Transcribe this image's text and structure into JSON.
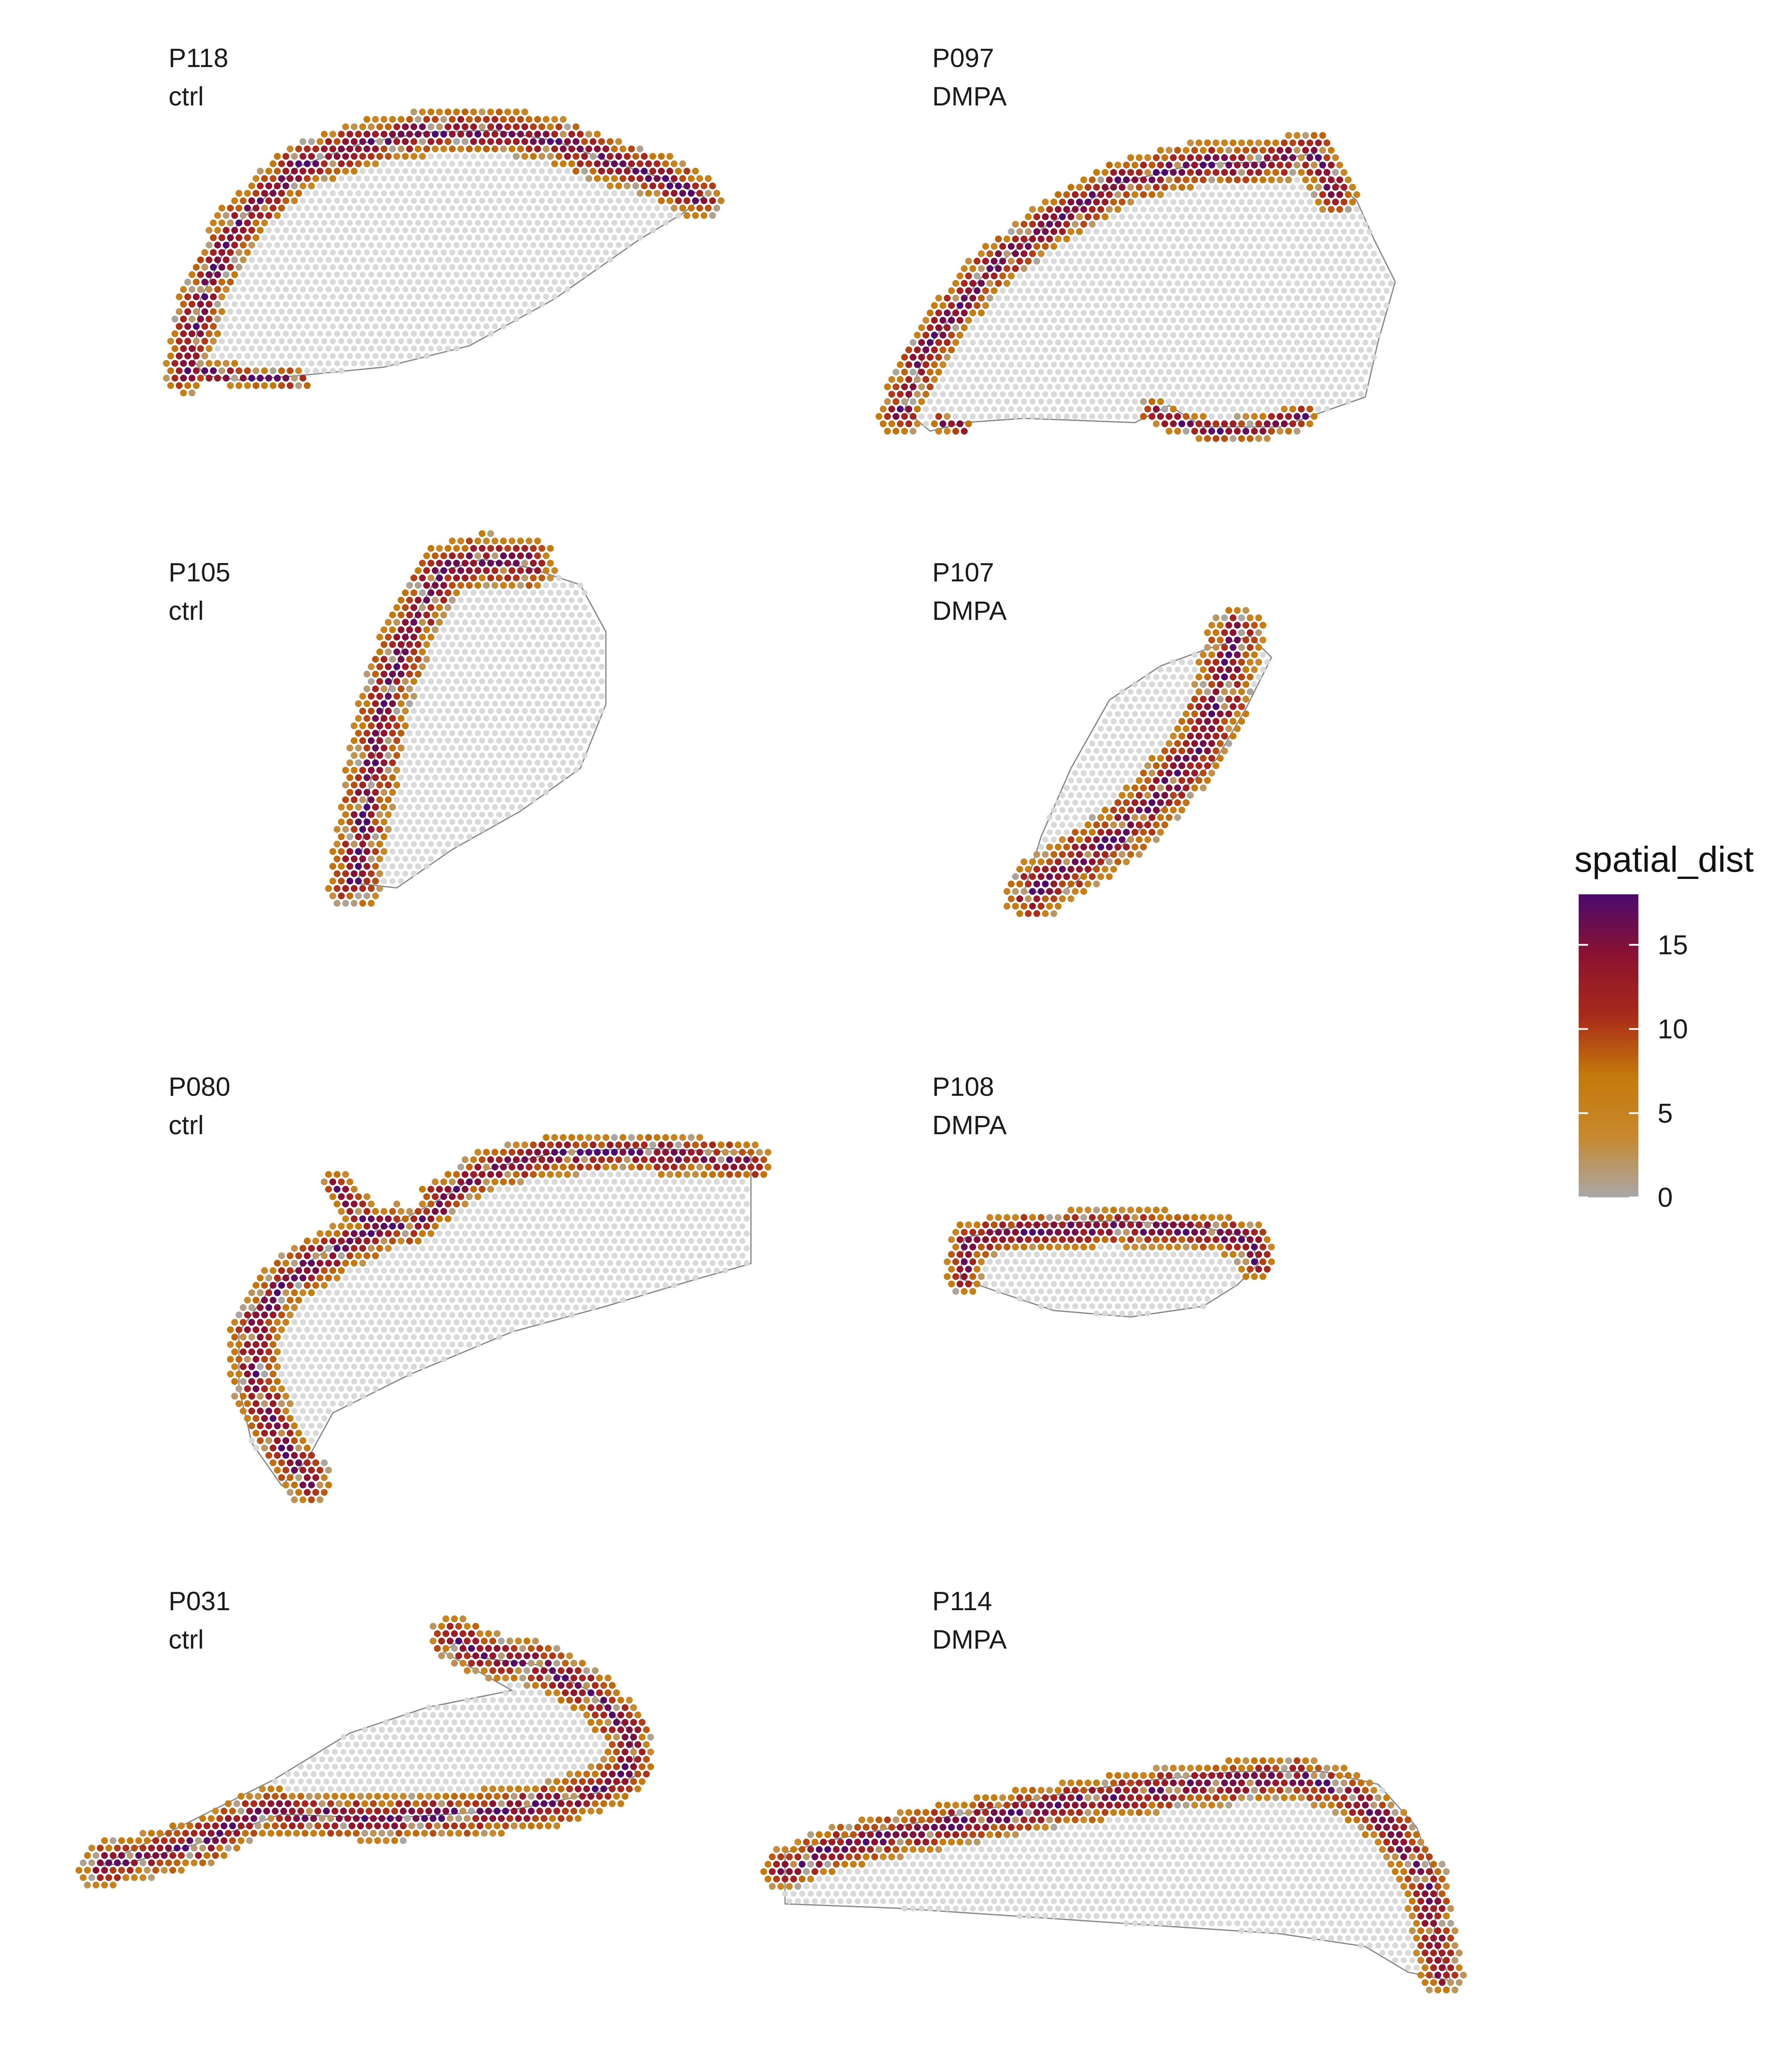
{
  "chart_data": {
    "type": "scatter",
    "description_kind": "spatial transcriptomics spot maps, faceted by sample",
    "panels": [
      {
        "sample": "P118",
        "group": "ctrl"
      },
      {
        "sample": "P097",
        "group": "DMPA"
      },
      {
        "sample": "P105",
        "group": "ctrl"
      },
      {
        "sample": "P107",
        "group": "DMPA"
      },
      {
        "sample": "P080",
        "group": "ctrl"
      },
      {
        "sample": "P108",
        "group": "DMPA"
      },
      {
        "sample": "P031",
        "group": "ctrl"
      },
      {
        "sample": "P114",
        "group": "DMPA"
      }
    ],
    "legend": {
      "title": "spatial_dist",
      "ticks": [
        0,
        5,
        10,
        15
      ],
      "range": [
        0,
        18
      ],
      "placement": "right",
      "colors": [
        "#a8a8a8",
        "#c8882e",
        "#c47a0a",
        "#a82a1a",
        "#8a1230",
        "#4b0a6e"
      ]
    },
    "background_spot_color": "#d9d9d9",
    "outline_color": "#888888",
    "axes": false,
    "grid": false
  }
}
